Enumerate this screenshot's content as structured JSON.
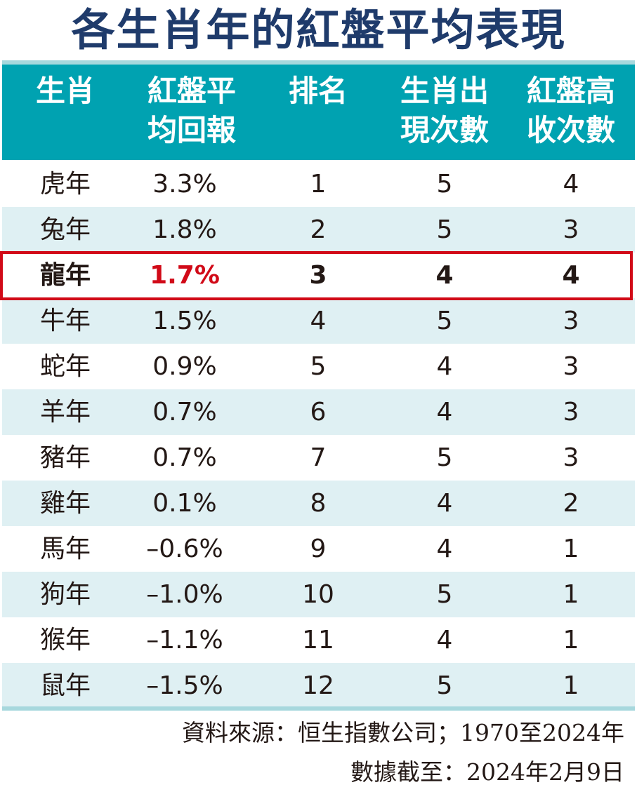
{
  "title": "各生肖年的紅盤平均表現",
  "table": {
    "headers": [
      {
        "line1": "生肖",
        "line2": ""
      },
      {
        "line1": "紅盤平",
        "line2": "均回報"
      },
      {
        "line1": "排名",
        "line2": ""
      },
      {
        "line1": "生肖出",
        "line2": "現次數"
      },
      {
        "line1": "紅盤高",
        "line2": "收次數"
      }
    ],
    "rows": [
      {
        "zodiac": "虎年",
        "avg_return": "3.3%",
        "rank": "1",
        "appearances": "5",
        "up_closes": "4"
      },
      {
        "zodiac": "兔年",
        "avg_return": "1.8%",
        "rank": "2",
        "appearances": "5",
        "up_closes": "3"
      },
      {
        "zodiac": "龍年",
        "avg_return": "1.7%",
        "rank": "3",
        "appearances": "4",
        "up_closes": "4",
        "highlighted": true
      },
      {
        "zodiac": "牛年",
        "avg_return": "1.5%",
        "rank": "4",
        "appearances": "5",
        "up_closes": "3"
      },
      {
        "zodiac": "蛇年",
        "avg_return": "0.9%",
        "rank": "5",
        "appearances": "4",
        "up_closes": "3"
      },
      {
        "zodiac": "羊年",
        "avg_return": "0.7%",
        "rank": "6",
        "appearances": "4",
        "up_closes": "3"
      },
      {
        "zodiac": "豬年",
        "avg_return": "0.7%",
        "rank": "7",
        "appearances": "5",
        "up_closes": "3"
      },
      {
        "zodiac": "雞年",
        "avg_return": "0.1%",
        "rank": "8",
        "appearances": "4",
        "up_closes": "2"
      },
      {
        "zodiac": "馬年",
        "avg_return": "–0.6%",
        "rank": "9",
        "appearances": "4",
        "up_closes": "1"
      },
      {
        "zodiac": "狗年",
        "avg_return": "–1.0%",
        "rank": "10",
        "appearances": "5",
        "up_closes": "1"
      },
      {
        "zodiac": "猴年",
        "avg_return": "–1.1%",
        "rank": "11",
        "appearances": "4",
        "up_closes": "1"
      },
      {
        "zodiac": "鼠年",
        "avg_return": "–1.5%",
        "rank": "12",
        "appearances": "5",
        "up_closes": "1"
      }
    ]
  },
  "notes": {
    "source": "資料來源：恒生指數公司；1970至2024年",
    "as_of": "數據截至：2024年2月9日"
  },
  "colors": {
    "title": "#1f3b6b",
    "header_bg": "#00a2b1",
    "alt_row_bg": "#dff0f3",
    "highlight": "#d10a18"
  }
}
